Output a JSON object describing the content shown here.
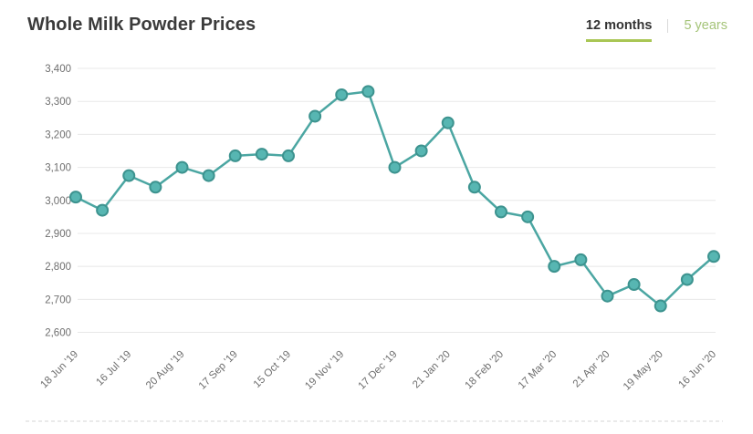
{
  "header": {
    "title": "Whole Milk Powder Prices",
    "tabs": [
      {
        "label": "12 months",
        "active": true
      },
      {
        "label": "5 years",
        "active": false
      }
    ]
  },
  "colors": {
    "title_text": "#3b3b3b",
    "tab_active_text": "#333333",
    "tab_underline": "#a9c654",
    "tab_inactive_text": "#a5c479",
    "grid": "#e8e8e8",
    "axis_text": "#6e6e6e",
    "line": "#4ba6a2",
    "marker_fill": "#57b6b2",
    "marker_stroke": "#3d938f",
    "dashed_line": "#d4d4d4"
  },
  "chart_data": {
    "type": "line",
    "title": "Whole Milk Powder Prices",
    "xlabel": "",
    "ylabel": "",
    "ylim": [
      2600,
      3400
    ],
    "y_ticks": [
      3400,
      3300,
      3200,
      3100,
      3000,
      2900,
      2800,
      2700,
      2600
    ],
    "grid": "horizontal",
    "legend": "none",
    "x_tick_every": 2,
    "x_tick_labels": [
      "18 Jun '19",
      "16 Jul '19",
      "20 Aug '19",
      "17 Sep '19",
      "15 Oct '19",
      "19 Nov '19",
      "17 Dec '19",
      "21 Jan '20",
      "18 Feb '20",
      "17 Mar '20",
      "21 Apr '20",
      "19 May '20",
      "16 Jun '20"
    ],
    "values": [
      3010,
      2970,
      3075,
      3040,
      3100,
      3075,
      3135,
      3140,
      3135,
      3255,
      3320,
      3330,
      3100,
      3150,
      3235,
      3040,
      2965,
      2950,
      2800,
      2820,
      2710,
      2745,
      2680,
      2760,
      2830
    ]
  }
}
